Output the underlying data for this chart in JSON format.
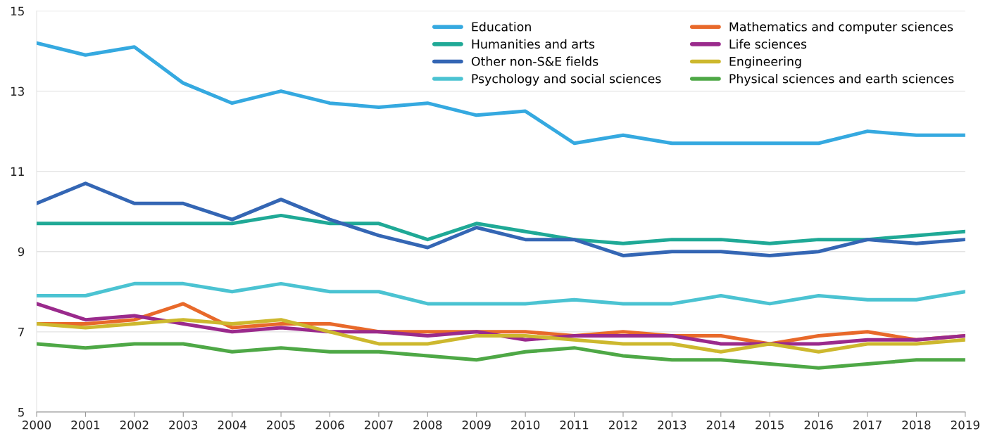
{
  "chart_data": {
    "type": "line",
    "x": [
      2000,
      2001,
      2002,
      2003,
      2004,
      2005,
      2006,
      2007,
      2008,
      2009,
      2010,
      2011,
      2012,
      2013,
      2014,
      2015,
      2016,
      2017,
      2018,
      2019
    ],
    "xlim": [
      2000,
      2019
    ],
    "xticks": [
      2000,
      2001,
      2002,
      2003,
      2004,
      2005,
      2006,
      2007,
      2008,
      2009,
      2010,
      2011,
      2012,
      2013,
      2014,
      2015,
      2016,
      2017,
      2018,
      2019
    ],
    "ylim": [
      5,
      15
    ],
    "yticks": [
      5,
      7,
      9,
      11,
      13,
      15
    ],
    "grid": "y",
    "legend": "top right",
    "marker": "none",
    "line_style": "solid",
    "series": [
      {
        "name": "Education",
        "color": "#35a9e0",
        "values": [
          14.2,
          13.9,
          14.1,
          13.2,
          12.7,
          13.0,
          12.7,
          12.6,
          12.7,
          12.4,
          12.5,
          11.7,
          11.9,
          11.7,
          11.7,
          11.7,
          11.7,
          12.0,
          11.9,
          11.9
        ]
      },
      {
        "name": "Humanities and arts",
        "color": "#1fa996",
        "values": [
          9.7,
          9.7,
          9.7,
          9.7,
          9.7,
          9.9,
          9.7,
          9.7,
          9.3,
          9.7,
          9.5,
          9.3,
          9.2,
          9.3,
          9.3,
          9.2,
          9.3,
          9.3,
          9.4,
          9.5
        ]
      },
      {
        "name": "Other non-S&E fields",
        "color": "#3466b4",
        "values": [
          10.2,
          10.7,
          10.2,
          10.2,
          9.8,
          10.3,
          9.8,
          9.4,
          9.1,
          9.6,
          9.3,
          9.3,
          8.9,
          9.0,
          9.0,
          8.9,
          9.0,
          9.3,
          9.2,
          9.3
        ]
      },
      {
        "name": "Psychology and social sciences",
        "color": "#4bc3d2",
        "values": [
          7.9,
          7.9,
          8.2,
          8.2,
          8.0,
          8.2,
          8.0,
          8.0,
          7.7,
          7.7,
          7.7,
          7.8,
          7.7,
          7.7,
          7.9,
          7.7,
          7.9,
          7.8,
          7.8,
          8.0
        ]
      },
      {
        "name": "Mathematics and computer sciences",
        "color": "#e8692a",
        "values": [
          7.2,
          7.2,
          7.3,
          7.7,
          7.1,
          7.2,
          7.2,
          7.0,
          7.0,
          7.0,
          7.0,
          6.9,
          7.0,
          6.9,
          6.9,
          6.7,
          6.9,
          7.0,
          6.8,
          6.9
        ]
      },
      {
        "name": "Life sciences",
        "color": "#9a2a8c",
        "values": [
          7.7,
          7.3,
          7.4,
          7.2,
          7.0,
          7.1,
          7.0,
          7.0,
          6.9,
          7.0,
          6.8,
          6.9,
          6.9,
          6.9,
          6.7,
          6.7,
          6.7,
          6.8,
          6.8,
          6.9
        ]
      },
      {
        "name": "Engineering",
        "color": "#cdb82e",
        "values": [
          7.2,
          7.1,
          7.2,
          7.3,
          7.2,
          7.3,
          7.0,
          6.7,
          6.7,
          6.9,
          6.9,
          6.8,
          6.7,
          6.7,
          6.5,
          6.7,
          6.5,
          6.7,
          6.7,
          6.8
        ]
      },
      {
        "name": "Physical sciences and earth sciences",
        "color": "#4ea846",
        "values": [
          6.7,
          6.6,
          6.7,
          6.7,
          6.5,
          6.6,
          6.5,
          6.5,
          6.4,
          6.3,
          6.5,
          6.6,
          6.4,
          6.3,
          6.3,
          6.2,
          6.1,
          6.2,
          6.3,
          6.3
        ]
      }
    ]
  }
}
